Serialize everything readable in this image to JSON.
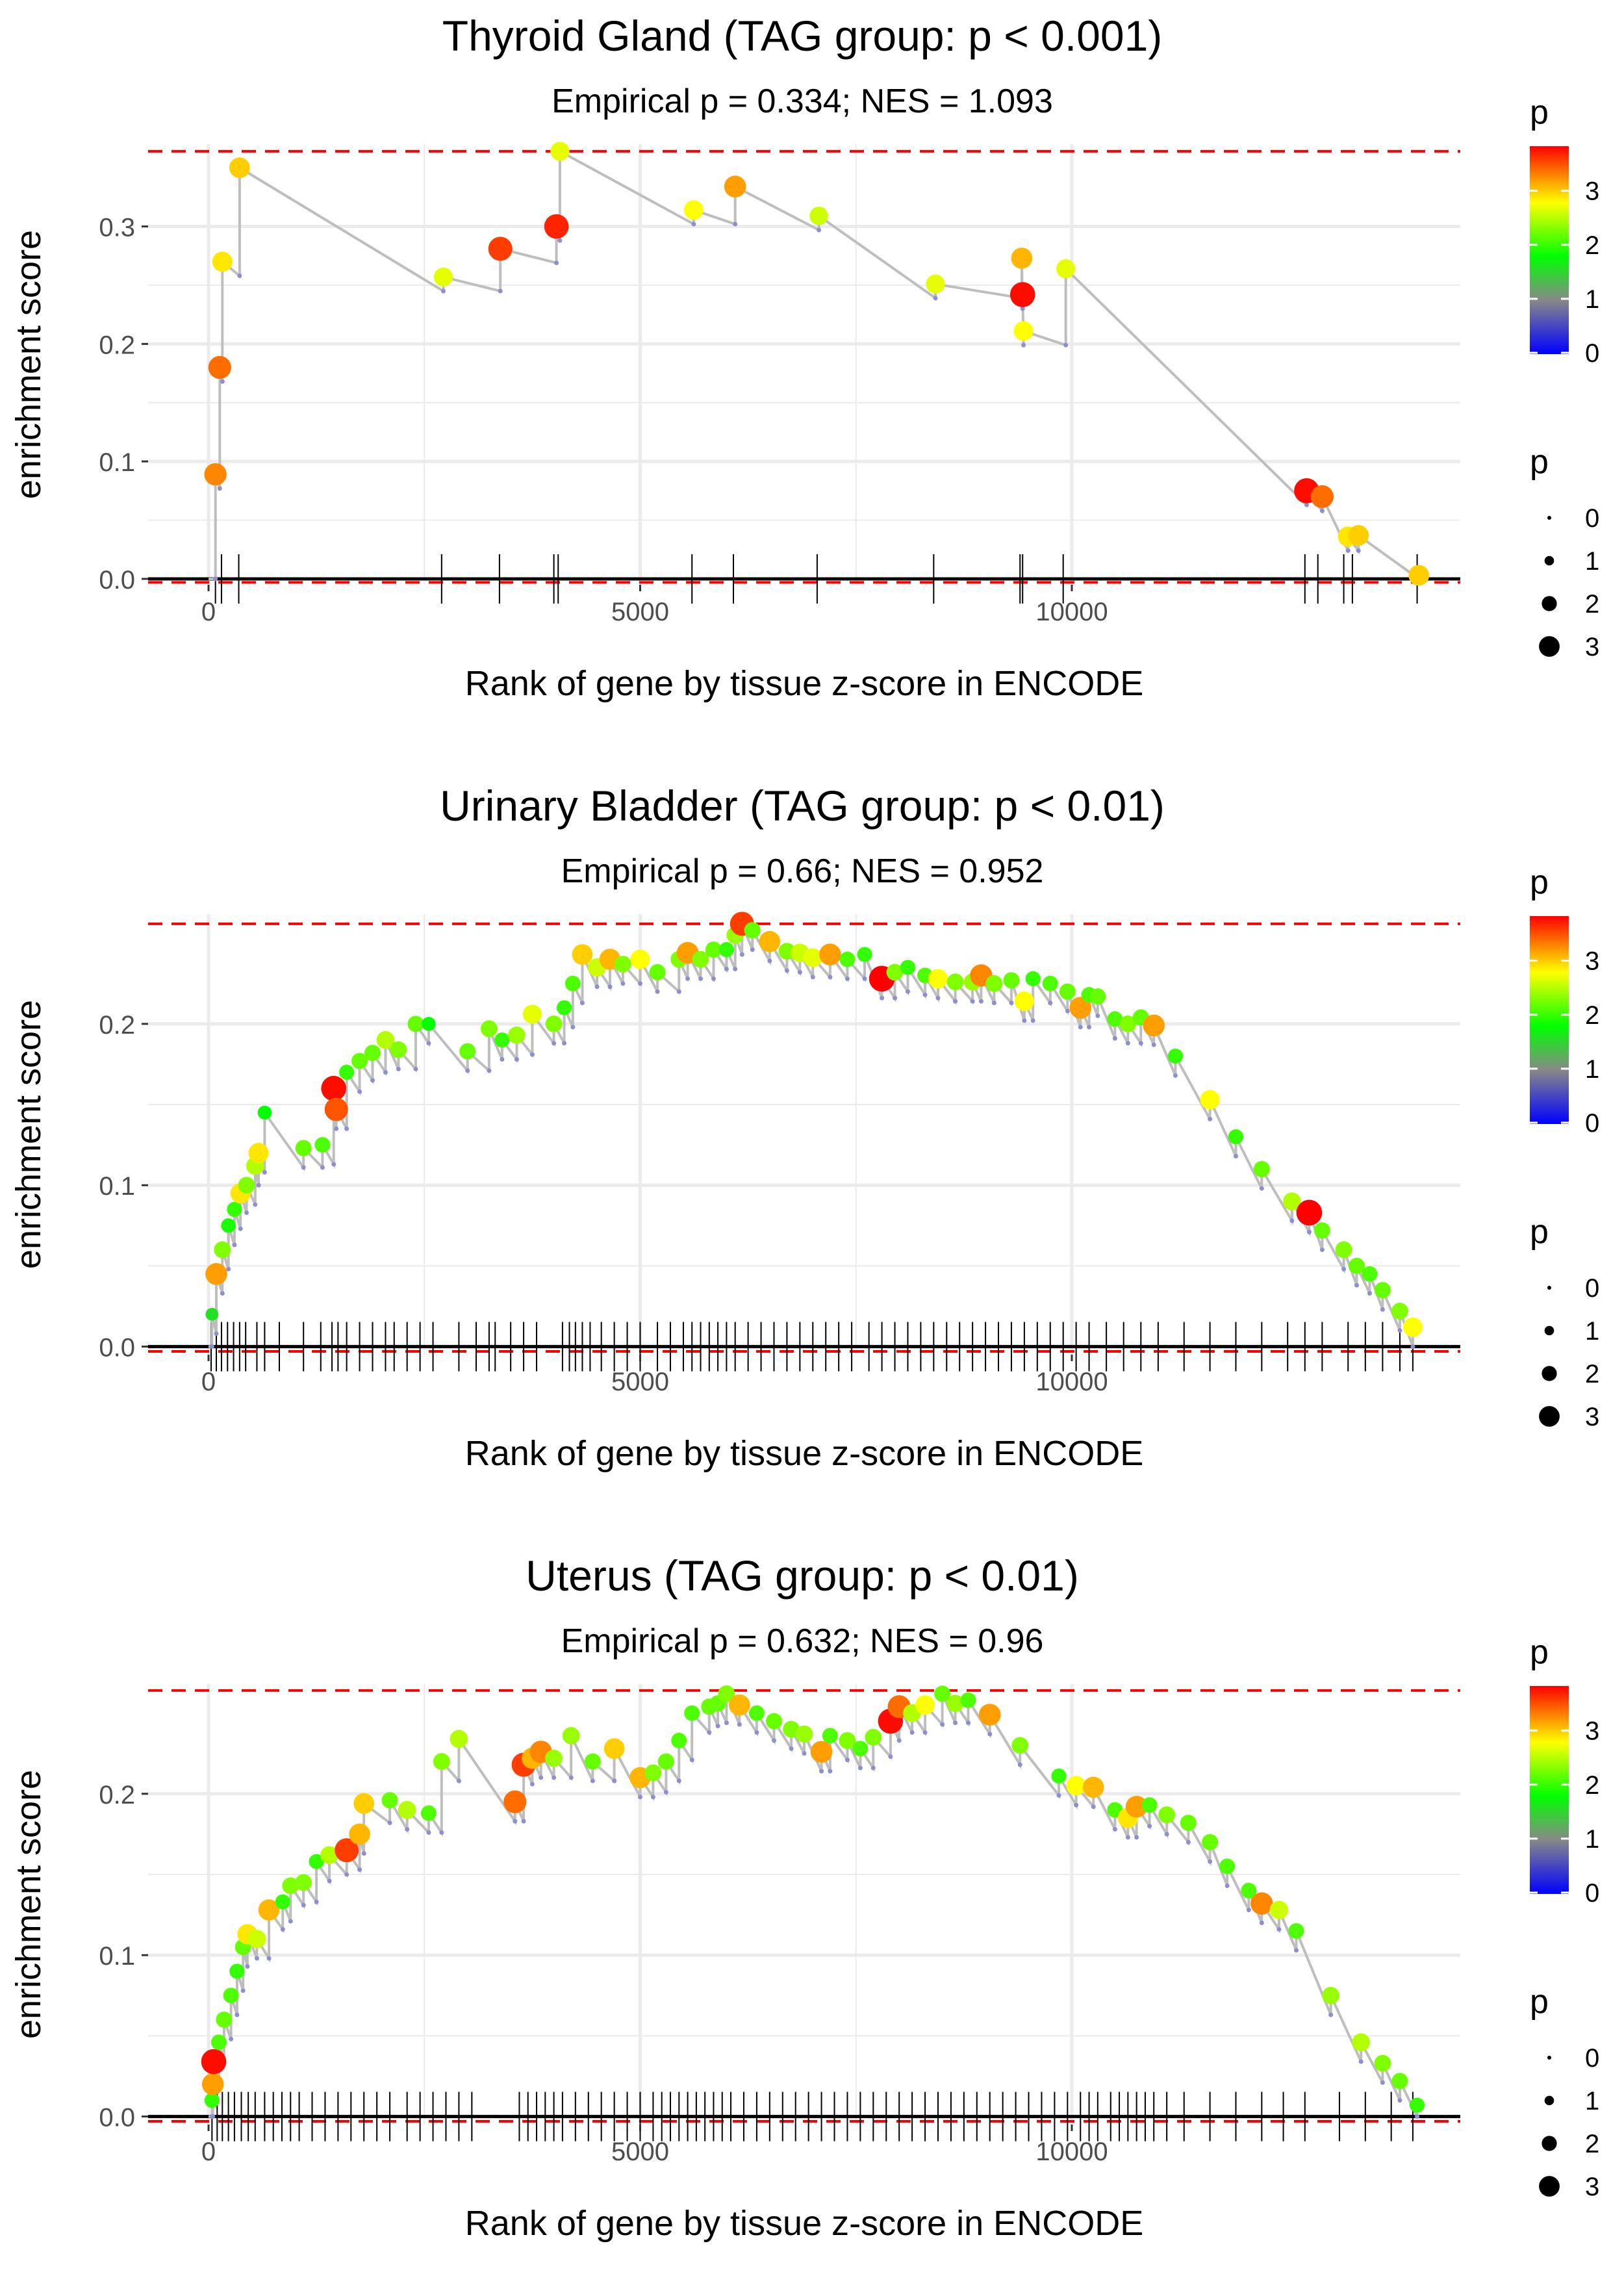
{
  "colors": {
    "grid": "#ebebeb",
    "line": "#bebebe",
    "axis_line": "#000000",
    "hline": "#ff0000",
    "tick_text": "#4d4d4d",
    "gradient": [
      "#0000ff",
      "#888888",
      "#00ff00",
      "#ffff00",
      "#ff0000"
    ]
  },
  "legend": {
    "color_title": "p",
    "color_ticks": [
      "0",
      "1",
      "2",
      "3"
    ],
    "size_title": "p",
    "size_values": [
      "0",
      "1",
      "2",
      "3"
    ]
  },
  "chart_data": [
    {
      "type": "scatter",
      "title": "Thyroid Gland (TAG group: p < 0.001)",
      "subtitle": "Empirical p = 0.334; NES = 1.093",
      "xlabel": "Rank of gene by tissue z-score in ENCODE",
      "ylabel": "enrichment score",
      "xlim": [
        -700,
        14500
      ],
      "ylim": [
        -0.005,
        0.37
      ],
      "x_ticks": [
        0,
        5000,
        10000
      ],
      "y_ticks": [
        0,
        0.1,
        0.2,
        0.3
      ],
      "y_tick_labels": [
        "0.0",
        "0.1",
        "0.2",
        "0.3"
      ],
      "hlines": [
        0.364,
        -0.003
      ],
      "rug": [
        80,
        150,
        350,
        2700,
        3370,
        4000,
        4050,
        5600,
        6080,
        7050,
        8400,
        9400,
        9430,
        9900,
        12700,
        12850,
        13150,
        13250,
        14000
      ],
      "points": [
        [
          80,
          0.089,
          3.3
        ],
        [
          130,
          0.18,
          3.4
        ],
        [
          160,
          0.27,
          2.9
        ],
        [
          360,
          0.35,
          3.0
        ],
        [
          2720,
          0.257,
          2.7
        ],
        [
          3380,
          0.281,
          3.6
        ],
        [
          4030,
          0.3,
          3.7
        ],
        [
          4070,
          0.364,
          2.7
        ],
        [
          5620,
          0.314,
          2.8
        ],
        [
          6100,
          0.334,
          3.2
        ],
        [
          7070,
          0.309,
          2.6
        ],
        [
          8420,
          0.251,
          2.7
        ],
        [
          9420,
          0.273,
          3.1
        ],
        [
          9430,
          0.242,
          3.8
        ],
        [
          9440,
          0.211,
          2.8
        ],
        [
          9930,
          0.264,
          2.7
        ],
        [
          12720,
          0.075,
          3.8
        ],
        [
          12900,
          0.07,
          3.4
        ],
        [
          13200,
          0.036,
          2.9
        ],
        [
          13320,
          0.037,
          3.0
        ],
        [
          14020,
          0.003,
          3.0
        ]
      ]
    },
    {
      "type": "scatter",
      "title": "Urinary Bladder (TAG group: p < 0.01)",
      "subtitle": "Empirical p = 0.66; NES = 0.952",
      "xlabel": "Rank of gene by tissue z-score in ENCODE",
      "ylabel": "enrichment score",
      "xlim": [
        -700,
        14500
      ],
      "ylim": [
        -0.005,
        0.268
      ],
      "x_ticks": [
        0,
        5000,
        10000
      ],
      "y_ticks": [
        0,
        0.1,
        0.2
      ],
      "y_tick_labels": [
        "0.0",
        "0.1",
        "0.2"
      ],
      "hlines": [
        0.262,
        -0.003
      ],
      "rug": [
        30,
        90,
        150,
        220,
        290,
        360,
        430,
        560,
        650,
        820,
        1100,
        1300,
        1430,
        1500,
        1600,
        1750,
        1900,
        2050,
        2150,
        2300,
        2450,
        2600,
        2900,
        3100,
        3250,
        3320,
        3500,
        3650,
        3800,
        4100,
        4180,
        4250,
        4330,
        4420,
        4550,
        4700,
        4850,
        5000,
        5200,
        5350,
        5500,
        5600,
        5700,
        5800,
        5900,
        6000,
        6100,
        6250,
        6400,
        6550,
        6700,
        6850,
        7000,
        7150,
        7300,
        7450,
        7650,
        7800,
        7950,
        8100,
        8250,
        8400,
        8550,
        8700,
        8850,
        9000,
        9150,
        9300,
        9450,
        9600,
        9750,
        9900,
        10050,
        10200,
        10400,
        10600,
        10800,
        11000,
        11300,
        11600,
        11900,
        12200,
        12500,
        12700,
        12900,
        13200,
        13400,
        13600,
        13800,
        13950
      ],
      "points": [
        [
          40,
          0.02,
          1.6
        ],
        [
          90,
          0.045,
          3.2
        ],
        [
          160,
          0.06,
          2.3
        ],
        [
          230,
          0.075,
          1.9
        ],
        [
          300,
          0.085,
          2.0
        ],
        [
          370,
          0.095,
          2.9
        ],
        [
          440,
          0.1,
          2.3
        ],
        [
          540,
          0.112,
          2.5
        ],
        [
          580,
          0.12,
          2.9
        ],
        [
          650,
          0.145,
          1.8
        ],
        [
          1100,
          0.123,
          2.2
        ],
        [
          1320,
          0.125,
          2.1
        ],
        [
          1450,
          0.16,
          3.8
        ],
        [
          1480,
          0.147,
          3.5
        ],
        [
          1600,
          0.17,
          2.0
        ],
        [
          1750,
          0.177,
          2.2
        ],
        [
          1900,
          0.182,
          2.2
        ],
        [
          2050,
          0.19,
          2.5
        ],
        [
          2200,
          0.184,
          2.3
        ],
        [
          2400,
          0.2,
          2.2
        ],
        [
          2550,
          0.2,
          1.8
        ],
        [
          3000,
          0.183,
          2.2
        ],
        [
          3250,
          0.197,
          2.3
        ],
        [
          3400,
          0.19,
          2.0
        ],
        [
          3570,
          0.193,
          2.4
        ],
        [
          3750,
          0.206,
          2.7
        ],
        [
          4000,
          0.2,
          2.3
        ],
        [
          4120,
          0.21,
          2.0
        ],
        [
          4220,
          0.225,
          2.1
        ],
        [
          4330,
          0.243,
          3.0
        ],
        [
          4500,
          0.235,
          2.6
        ],
        [
          4650,
          0.24,
          3.1
        ],
        [
          4800,
          0.237,
          2.3
        ],
        [
          5000,
          0.24,
          2.8
        ],
        [
          5200,
          0.232,
          2.2
        ],
        [
          5450,
          0.24,
          2.3
        ],
        [
          5550,
          0.244,
          3.2
        ],
        [
          5700,
          0.24,
          2.3
        ],
        [
          5850,
          0.246,
          2.2
        ],
        [
          6000,
          0.246,
          2.0
        ],
        [
          6100,
          0.255,
          2.4
        ],
        [
          6180,
          0.262,
          3.6
        ],
        [
          6300,
          0.258,
          2.2
        ],
        [
          6500,
          0.251,
          3.1
        ],
        [
          6700,
          0.245,
          2.3
        ],
        [
          6850,
          0.244,
          2.6
        ],
        [
          7000,
          0.241,
          2.7
        ],
        [
          7200,
          0.243,
          3.2
        ],
        [
          7400,
          0.24,
          2.1
        ],
        [
          7600,
          0.243,
          2.0
        ],
        [
          7800,
          0.228,
          3.9
        ],
        [
          7950,
          0.232,
          2.3
        ],
        [
          8100,
          0.235,
          2.0
        ],
        [
          8300,
          0.23,
          2.1
        ],
        [
          8450,
          0.228,
          2.8
        ],
        [
          8650,
          0.226,
          2.3
        ],
        [
          8850,
          0.226,
          2.4
        ],
        [
          8950,
          0.23,
          3.3
        ],
        [
          9100,
          0.225,
          2.3
        ],
        [
          9300,
          0.227,
          2.2
        ],
        [
          9450,
          0.214,
          2.8
        ],
        [
          9550,
          0.228,
          2.0
        ],
        [
          9750,
          0.225,
          2.1
        ],
        [
          9950,
          0.22,
          2.2
        ],
        [
          10100,
          0.21,
          3.2
        ],
        [
          10200,
          0.218,
          2.1
        ],
        [
          10300,
          0.217,
          2.2
        ],
        [
          10500,
          0.203,
          2.1
        ],
        [
          10650,
          0.2,
          2.3
        ],
        [
          10800,
          0.204,
          2.2
        ],
        [
          10950,
          0.199,
          3.2
        ],
        [
          11200,
          0.18,
          2.0
        ],
        [
          11600,
          0.153,
          2.8
        ],
        [
          11900,
          0.13,
          2.0
        ],
        [
          12200,
          0.11,
          2.2
        ],
        [
          12550,
          0.09,
          2.5
        ],
        [
          12750,
          0.083,
          3.9
        ],
        [
          12900,
          0.072,
          2.2
        ],
        [
          13150,
          0.06,
          2.3
        ],
        [
          13300,
          0.05,
          2.2
        ],
        [
          13450,
          0.045,
          2.1
        ],
        [
          13600,
          0.035,
          2.2
        ],
        [
          13800,
          0.022,
          2.3
        ],
        [
          13950,
          0.012,
          2.8
        ]
      ]
    },
    {
      "type": "scatter",
      "title": "Uterus (TAG group: p < 0.01)",
      "subtitle": "Empirical p = 0.632; NES = 0.96",
      "xlabel": "Rank of gene by tissue z-score in ENCODE",
      "ylabel": "enrichment score",
      "xlim": [
        -700,
        14500
      ],
      "ylim": [
        -0.005,
        0.268
      ],
      "x_ticks": [
        0,
        5000,
        10000
      ],
      "y_ticks": [
        0,
        0.1,
        0.2
      ],
      "y_tick_labels": [
        "0.0",
        "0.1",
        "0.2"
      ],
      "hlines": [
        0.264,
        -0.003
      ],
      "rug": [
        40,
        100,
        160,
        230,
        300,
        380,
        460,
        540,
        650,
        750,
        850,
        950,
        1050,
        1200,
        1350,
        1500,
        1650,
        1800,
        1950,
        2100,
        2300,
        2450,
        2600,
        2750,
        2900,
        3050,
        3600,
        3700,
        3800,
        3900,
        4000,
        4100,
        4250,
        4400,
        4550,
        4700,
        4850,
        5000,
        5150,
        5250,
        5350,
        5450,
        5550,
        5650,
        5750,
        5850,
        5950,
        6050,
        6200,
        6350,
        6500,
        6650,
        6800,
        6950,
        7100,
        7250,
        7400,
        7550,
        7700,
        7850,
        8000,
        8150,
        8300,
        8450,
        8600,
        8750,
        8900,
        9050,
        9200,
        9350,
        9500,
        9650,
        9800,
        9950,
        10100,
        10200,
        10300,
        10450,
        10550,
        10650,
        10750,
        10850,
        10950,
        11100,
        11300,
        11600,
        11900,
        12200,
        12450,
        12700,
        13100,
        13400,
        13700,
        13950
      ],
      "points": [
        [
          40,
          0.01,
          2.0
        ],
        [
          50,
          0.02,
          3.2
        ],
        [
          60,
          0.034,
          3.8
        ],
        [
          120,
          0.046,
          2.1
        ],
        [
          180,
          0.06,
          2.2
        ],
        [
          260,
          0.075,
          2.1
        ],
        [
          330,
          0.09,
          2.0
        ],
        [
          400,
          0.105,
          2.2
        ],
        [
          450,
          0.113,
          2.9
        ],
        [
          560,
          0.11,
          2.6
        ],
        [
          700,
          0.128,
          3.1
        ],
        [
          860,
          0.133,
          2.0
        ],
        [
          950,
          0.143,
          2.3
        ],
        [
          1100,
          0.145,
          2.3
        ],
        [
          1250,
          0.158,
          2.0
        ],
        [
          1400,
          0.162,
          2.5
        ],
        [
          1600,
          0.165,
          3.6
        ],
        [
          1750,
          0.175,
          3.1
        ],
        [
          1800,
          0.194,
          3.0
        ],
        [
          2100,
          0.196,
          2.2
        ],
        [
          2300,
          0.19,
          2.5
        ],
        [
          2550,
          0.188,
          2.1
        ],
        [
          2700,
          0.22,
          2.3
        ],
        [
          2900,
          0.234,
          2.5
        ],
        [
          3550,
          0.195,
          3.4
        ],
        [
          3650,
          0.218,
          3.6
        ],
        [
          3750,
          0.222,
          3.1
        ],
        [
          3850,
          0.226,
          3.3
        ],
        [
          4000,
          0.222,
          2.4
        ],
        [
          4200,
          0.236,
          2.4
        ],
        [
          4450,
          0.22,
          2.2
        ],
        [
          4700,
          0.228,
          3.0
        ],
        [
          5000,
          0.21,
          3.1
        ],
        [
          5150,
          0.213,
          2.3
        ],
        [
          5300,
          0.22,
          2.2
        ],
        [
          5450,
          0.233,
          2.1
        ],
        [
          5600,
          0.25,
          2.1
        ],
        [
          5800,
          0.254,
          2.2
        ],
        [
          5900,
          0.256,
          2.2
        ],
        [
          6000,
          0.262,
          2.3
        ],
        [
          6150,
          0.255,
          3.1
        ],
        [
          6350,
          0.25,
          2.1
        ],
        [
          6550,
          0.245,
          2.2
        ],
        [
          6750,
          0.24,
          2.3
        ],
        [
          6900,
          0.237,
          2.4
        ],
        [
          7100,
          0.226,
          3.2
        ],
        [
          7200,
          0.236,
          2.1
        ],
        [
          7400,
          0.233,
          2.3
        ],
        [
          7550,
          0.228,
          2.1
        ],
        [
          7700,
          0.235,
          2.3
        ],
        [
          7900,
          0.245,
          3.8
        ],
        [
          8000,
          0.254,
          3.4
        ],
        [
          8150,
          0.25,
          2.5
        ],
        [
          8300,
          0.255,
          2.8
        ],
        [
          8500,
          0.262,
          2.2
        ],
        [
          8650,
          0.256,
          2.4
        ],
        [
          8800,
          0.258,
          2.1
        ],
        [
          9050,
          0.249,
          3.2
        ],
        [
          9400,
          0.23,
          2.3
        ],
        [
          9850,
          0.211,
          2.0
        ],
        [
          10050,
          0.205,
          2.8
        ],
        [
          10250,
          0.204,
          3.1
        ],
        [
          10500,
          0.19,
          2.1
        ],
        [
          10650,
          0.185,
          2.9
        ],
        [
          10750,
          0.192,
          3.2
        ],
        [
          10900,
          0.193,
          2.1
        ],
        [
          11100,
          0.187,
          2.3
        ],
        [
          11350,
          0.182,
          2.2
        ],
        [
          11600,
          0.17,
          2.2
        ],
        [
          11800,
          0.155,
          2.1
        ],
        [
          12050,
          0.14,
          2.1
        ],
        [
          12200,
          0.132,
          3.3
        ],
        [
          12400,
          0.128,
          2.6
        ],
        [
          12600,
          0.115,
          2.1
        ],
        [
          13000,
          0.075,
          2.4
        ],
        [
          13350,
          0.046,
          2.5
        ],
        [
          13600,
          0.033,
          2.3
        ],
        [
          13800,
          0.022,
          2.2
        ],
        [
          14000,
          0.007,
          2.0
        ]
      ]
    }
  ]
}
